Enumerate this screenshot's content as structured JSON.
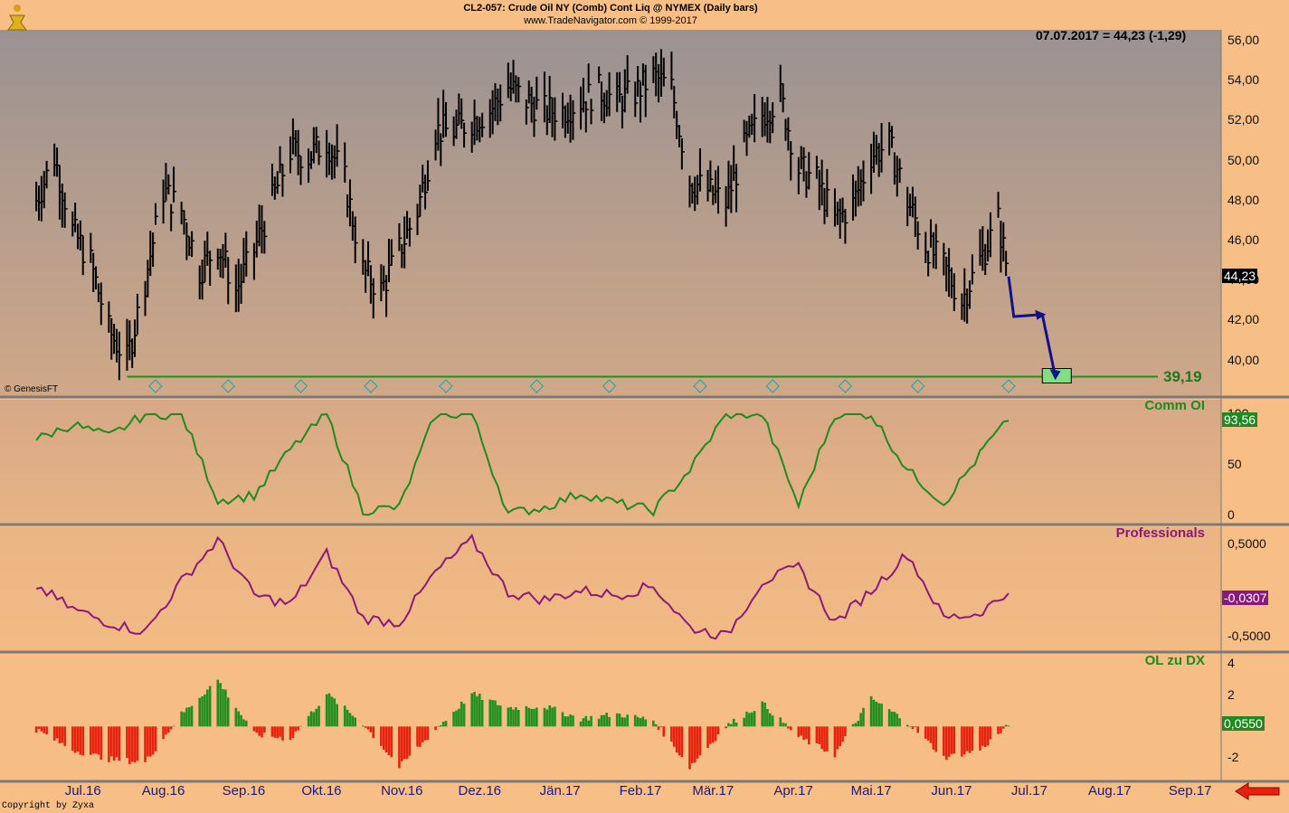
{
  "header": {
    "title": "CL2-057:  Crude Oil NY (Comb) Cont Liq @ NYMEX  (Daily bars)",
    "source": "www.TradeNavigator.com © 1999-2017"
  },
  "quote": "07.07.2017 = 44,23 (-1,29)",
  "credits": {
    "genesis": "© GenesisFT",
    "copyright": "Copyright by Zyxa"
  },
  "colors": {
    "background": "#f7be86",
    "price_bars": "#000000",
    "comm": "#1f8a1f",
    "pro": "#8a1a7a",
    "up": "#1f8f1f",
    "down": "#e8200e",
    "arrow": "#11118a",
    "level": "#1f8f1f",
    "xlabels": "#1a1a80"
  },
  "icons": {
    "logo": "gold-figure-logo-icon",
    "nav": "red-left-arrow-icon",
    "marker": "r-diamond-marker-icon"
  },
  "x_axis": [
    "Jul.16",
    "Aug.16",
    "Sep.16",
    "Okt.16",
    "Nov.16",
    "Dez.16",
    "Jän.17",
    "Feb.17",
    "Mär.17",
    "Apr.17",
    "Mai.17",
    "Jun.17",
    "Jul.17",
    "Aug.17",
    "Sep.17"
  ],
  "chart_data": [
    {
      "type": "ohlc",
      "title": "CL2-057:  Crude Oil NY (Comb) Cont Liq @ NYMEX  (Daily bars)",
      "ylim": [
        38,
        57
      ],
      "y_ticks": [
        "56,00",
        "54,00",
        "52,00",
        "50,00",
        "48,00",
        "46,00",
        "44,00",
        "42,00",
        "40,00"
      ],
      "last_value": "44,23",
      "support_level": {
        "label": "39,19",
        "value": 39.19
      },
      "projection": [
        {
          "x": "2017-07-07",
          "y": 44.2
        },
        {
          "x": "2017-07-09",
          "y": 42.2
        },
        {
          "x": "2017-07-20",
          "y": 42.3
        },
        {
          "x": "2017-07-25",
          "y": 39.2
        }
      ],
      "x": [
        "2016-06-27",
        "2016-07-04",
        "2016-07-11",
        "2016-07-18",
        "2016-07-25",
        "2016-08-01",
        "2016-08-08",
        "2016-08-15",
        "2016-08-22",
        "2016-08-29",
        "2016-09-05",
        "2016-09-12",
        "2016-09-19",
        "2016-09-26",
        "2016-10-03",
        "2016-10-10",
        "2016-10-17",
        "2016-10-24",
        "2016-10-31",
        "2016-11-07",
        "2016-11-14",
        "2016-11-21",
        "2016-11-28",
        "2016-12-05",
        "2016-12-12",
        "2016-12-19",
        "2016-12-26",
        "2017-01-02",
        "2017-01-09",
        "2017-01-16",
        "2017-01-23",
        "2017-01-30",
        "2017-02-06",
        "2017-02-13",
        "2017-02-20",
        "2017-02-27",
        "2017-03-06",
        "2017-03-13",
        "2017-03-20",
        "2017-03-27",
        "2017-04-03",
        "2017-04-10",
        "2017-04-17",
        "2017-04-24",
        "2017-05-01",
        "2017-05-08",
        "2017-05-15",
        "2017-05-22",
        "2017-05-29",
        "2017-06-05",
        "2017-06-12",
        "2017-06-19",
        "2017-06-26",
        "2017-07-03",
        "2017-07-07"
      ],
      "close": [
        48.0,
        50.2,
        46.5,
        44.9,
        41.5,
        40.0,
        44.0,
        48.5,
        47.5,
        44.5,
        45.8,
        43.5,
        45.5,
        48.0,
        50.5,
        50.2,
        51.0,
        49.0,
        44.5,
        43.5,
        45.5,
        47.5,
        51.5,
        51.5,
        52.0,
        52.5,
        53.7,
        53.0,
        52.5,
        52.5,
        53.0,
        53.5,
        53.0,
        53.4,
        54.2,
        53.6,
        49.0,
        48.5,
        47.9,
        50.6,
        52.3,
        53.2,
        49.6,
        49.0,
        47.0,
        47.8,
        50.3,
        50.8,
        48.0,
        45.8,
        44.7,
        43.0,
        45.0,
        47.0,
        44.23
      ]
    },
    {
      "type": "line",
      "title": "Comm OI",
      "ylim": [
        0,
        100
      ],
      "y_ticks": [
        "100",
        "50",
        "0"
      ],
      "last_value": "93,56",
      "x": [
        "2016-06-27",
        "2016-07-11",
        "2016-07-25",
        "2016-08-08",
        "2016-08-22",
        "2016-09-05",
        "2016-09-19",
        "2016-10-03",
        "2016-10-17",
        "2016-10-31",
        "2016-11-14",
        "2016-11-28",
        "2016-12-12",
        "2016-12-26",
        "2017-01-09",
        "2017-01-23",
        "2017-02-06",
        "2017-02-20",
        "2017-03-06",
        "2017-03-20",
        "2017-04-03",
        "2017-04-17",
        "2017-05-01",
        "2017-05-15",
        "2017-05-29",
        "2017-06-12",
        "2017-06-26",
        "2017-07-07"
      ],
      "values": [
        75,
        90,
        78,
        100,
        100,
        15,
        20,
        65,
        100,
        5,
        8,
        100,
        100,
        2,
        8,
        22,
        12,
        5,
        45,
        100,
        100,
        10,
        100,
        100,
        45,
        12,
        60,
        93.56
      ]
    },
    {
      "type": "line",
      "title": "Professionals",
      "ylim": [
        -0.6,
        0.6
      ],
      "y_ticks": [
        "0,5000",
        "-0,5000"
      ],
      "last_value": "-0,0307",
      "x": [
        "2016-06-27",
        "2016-07-11",
        "2016-07-25",
        "2016-08-08",
        "2016-08-22",
        "2016-09-05",
        "2016-09-19",
        "2016-10-03",
        "2016-10-17",
        "2016-10-31",
        "2016-11-14",
        "2016-11-28",
        "2016-12-12",
        "2016-12-26",
        "2017-01-09",
        "2017-01-23",
        "2017-02-06",
        "2017-02-20",
        "2017-03-06",
        "2017-03-20",
        "2017-04-03",
        "2017-04-17",
        "2017-05-01",
        "2017-05-15",
        "2017-05-29",
        "2017-06-12",
        "2017-06-26",
        "2017-07-07"
      ],
      "values": [
        0.05,
        -0.2,
        -0.35,
        -0.45,
        0.1,
        0.55,
        -0.05,
        -0.15,
        0.4,
        -0.3,
        -0.35,
        0.2,
        0.55,
        -0.02,
        -0.1,
        0.0,
        -0.05,
        0.05,
        -0.4,
        -0.5,
        0.1,
        0.25,
        -0.35,
        0.0,
        0.4,
        -0.3,
        -0.25,
        -0.03
      ]
    },
    {
      "type": "bar",
      "title": "OL zu DX",
      "ylim": [
        -3,
        4.2
      ],
      "y_ticks": [
        "4",
        "2",
        "-2"
      ],
      "last_value": "0,0550",
      "x": [
        "2016-06-27",
        "2016-07-11",
        "2016-07-25",
        "2016-08-08",
        "2016-08-22",
        "2016-09-05",
        "2016-09-19",
        "2016-10-03",
        "2016-10-17",
        "2016-10-31",
        "2016-11-14",
        "2016-11-28",
        "2016-12-12",
        "2016-12-26",
        "2017-01-09",
        "2017-01-23",
        "2017-02-06",
        "2017-02-20",
        "2017-03-06",
        "2017-03-20",
        "2017-04-03",
        "2017-04-17",
        "2017-05-01",
        "2017-05-15",
        "2017-05-29",
        "2017-06-12",
        "2017-06-26",
        "2017-07-07"
      ],
      "values": [
        -0.2,
        -1.5,
        -2.1,
        -2.3,
        0.8,
        3.0,
        -0.5,
        -0.8,
        2.1,
        0.2,
        -2.6,
        -0.2,
        2.1,
        1.2,
        1.3,
        0.5,
        0.8,
        0.4,
        -2.6,
        0.0,
        1.5,
        -0.7,
        -1.8,
        1.8,
        0.3,
        -2.0,
        -1.5,
        0.055
      ]
    }
  ]
}
